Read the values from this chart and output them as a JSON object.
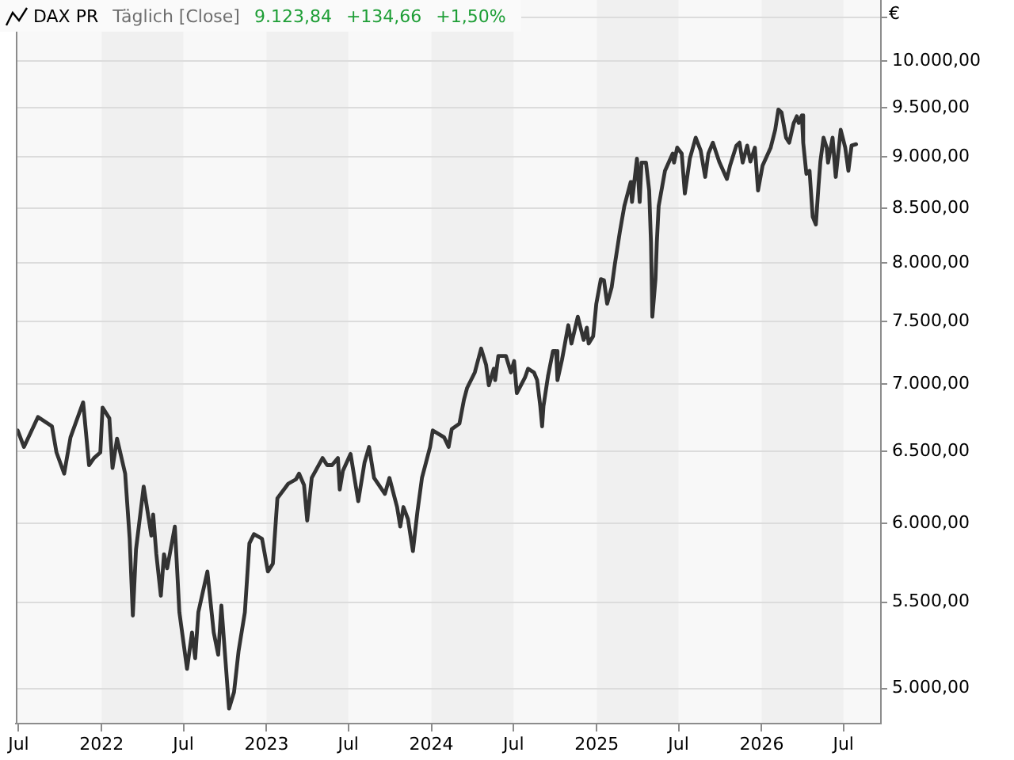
{
  "chart_data": {
    "type": "line",
    "title": "DAX PR",
    "subtitle": "Täglich [Close]",
    "ylabel": "€",
    "annotations": [
      "9.123,84",
      "+134,66",
      "+1,50%"
    ],
    "x": [
      "2021-06-29",
      "2021-07-13",
      "2021-08-13",
      "2021-09-13",
      "2021-09-23",
      "2021-10-10",
      "2021-10-24",
      "2021-11-21",
      "2021-12-04",
      "2021-12-15",
      "2021-12-29",
      "2022-01-03",
      "2022-01-18",
      "2022-01-25",
      "2022-02-04",
      "2022-02-22",
      "2022-03-04",
      "2022-03-11",
      "2022-03-18",
      "2022-04-04",
      "2022-04-21",
      "2022-04-25",
      "2022-05-02",
      "2022-05-12",
      "2022-05-19",
      "2022-05-26",
      "2022-06-12",
      "2022-06-22",
      "2022-07-09",
      "2022-07-20",
      "2022-07-27",
      "2022-08-03",
      "2022-08-23",
      "2022-09-06",
      "2022-09-16",
      "2022-09-23",
      "2022-10-10",
      "2022-10-21",
      "2022-10-31",
      "2022-11-14",
      "2022-11-24",
      "2022-12-04",
      "2022-12-22",
      "2023-01-04",
      "2023-01-15",
      "2023-01-25",
      "2023-02-18",
      "2023-03-07",
      "2023-03-14",
      "2023-03-25",
      "2023-04-01",
      "2023-04-11",
      "2023-05-05",
      "2023-05-15",
      "2023-05-26",
      "2023-06-08",
      "2023-06-12",
      "2023-06-19",
      "2023-07-06",
      "2023-07-23",
      "2023-08-06",
      "2023-08-16",
      "2023-08-27",
      "2023-09-20",
      "2023-09-30",
      "2023-10-17",
      "2023-10-24",
      "2023-10-31",
      "2023-11-10",
      "2023-11-21",
      "2023-12-01",
      "2023-12-11",
      "2023-12-29",
      "2024-01-04",
      "2024-01-29",
      "2024-02-08",
      "2024-02-15",
      "2024-03-03",
      "2024-03-13",
      "2024-03-20",
      "2024-04-06",
      "2024-04-20",
      "2024-05-01",
      "2024-05-07",
      "2024-05-18",
      "2024-05-21",
      "2024-05-28",
      "2024-06-14",
      "2024-06-25",
      "2024-07-02",
      "2024-07-08",
      "2024-07-26",
      "2024-08-02",
      "2024-08-15",
      "2024-08-22",
      "2024-08-29",
      "2024-09-02",
      "2024-09-05",
      "2024-09-15",
      "2024-09-26",
      "2024-10-03",
      "2024-10-06",
      "2024-10-16",
      "2024-10-30",
      "2024-11-06",
      "2024-11-20",
      "2024-12-03",
      "2024-12-10",
      "2024-12-14",
      "2024-12-24",
      "2024-12-31",
      "2025-01-10",
      "2025-01-17",
      "2025-01-24",
      "2025-02-03",
      "2025-02-10",
      "2025-02-21",
      "2025-03-03",
      "2025-03-17",
      "2025-03-20",
      "2025-03-31",
      "2025-04-06",
      "2025-04-10",
      "2025-04-20",
      "2025-04-27",
      "2025-05-01",
      "2025-05-04",
      "2025-05-11",
      "2025-05-14",
      "2025-05-18",
      "2025-06-01",
      "2025-06-18",
      "2025-06-21",
      "2025-06-28",
      "2025-07-08",
      "2025-07-15",
      "2025-07-26",
      "2025-08-08",
      "2025-08-19",
      "2025-08-29",
      "2025-09-05",
      "2025-09-15",
      "2025-09-29",
      "2025-10-16",
      "2025-10-23",
      "2025-11-06",
      "2025-11-13",
      "2025-11-20",
      "2025-11-30",
      "2025-12-07",
      "2025-12-17",
      "2025-12-24",
      "2026-01-03",
      "2026-01-21",
      "2026-01-31",
      "2026-02-07",
      "2026-02-14",
      "2026-02-24",
      "2026-03-03",
      "2026-03-13",
      "2026-03-20",
      "2026-03-24",
      "2026-03-31",
      "2026-04-03",
      "2026-04-10",
      "2026-04-17",
      "2026-04-24",
      "2026-05-01",
      "2026-05-07",
      "2026-05-11",
      "2026-05-18",
      "2026-05-25",
      "2026-05-28",
      "2026-06-07",
      "2026-06-14",
      "2026-06-25",
      "2026-07-05",
      "2026-07-12",
      "2026-07-19",
      "2026-07-29"
    ],
    "values": [
      6650,
      6530,
      6750,
      6680,
      6490,
      6340,
      6600,
      6860,
      6400,
      6450,
      6490,
      6820,
      6740,
      6380,
      6590,
      6340,
      5900,
      5420,
      5830,
      6250,
      5920,
      6060,
      5800,
      5540,
      5800,
      5710,
      5980,
      5440,
      5110,
      5320,
      5170,
      5440,
      5690,
      5320,
      5190,
      5480,
      4890,
      4980,
      5210,
      5440,
      5870,
      5930,
      5900,
      5690,
      5740,
      6170,
      6270,
      6300,
      6340,
      6260,
      6020,
      6310,
      6450,
      6400,
      6400,
      6450,
      6230,
      6360,
      6480,
      6150,
      6420,
      6530,
      6310,
      6200,
      6310,
      6110,
      5980,
      6110,
      6030,
      5820,
      6080,
      6310,
      6530,
      6650,
      6600,
      6530,
      6660,
      6700,
      6880,
      6970,
      7090,
      7280,
      7150,
      6990,
      7120,
      7030,
      7220,
      7220,
      7090,
      7180,
      6930,
      7050,
      7120,
      7090,
      7030,
      6830,
      6680,
      6830,
      7060,
      7260,
      7260,
      7030,
      7190,
      7470,
      7320,
      7540,
      7350,
      7450,
      7320,
      7380,
      7650,
      7860,
      7850,
      7650,
      7790,
      7990,
      8280,
      8520,
      8750,
      8560,
      8980,
      8560,
      8940,
      8940,
      8670,
      8190,
      7540,
      7860,
      8190,
      8520,
      8860,
      9030,
      8940,
      9090,
      9030,
      8640,
      8980,
      9190,
      9060,
      8800,
      9030,
      9140,
      8950,
      8780,
      8910,
      9110,
      9140,
      8940,
      9110,
      8950,
      9090,
      8670,
      8910,
      9090,
      9270,
      9480,
      9450,
      9190,
      9140,
      9340,
      9410,
      9340,
      9420,
      9140,
      8830,
      8860,
      8420,
      8350,
      8720,
      8950,
      9190,
      9090,
      8940,
      9190,
      8800,
      9270,
      9090,
      8860,
      9110,
      9123.84
    ],
    "color": "#333333",
    "xlim": [
      "2021-06-25",
      "2026-09-22"
    ],
    "ylim": [
      4810,
      10700
    ],
    "xticks": [
      {
        "value": "2021-07-01",
        "label": "Jul"
      },
      {
        "value": "2022-01-01",
        "label": "2022"
      },
      {
        "value": "2022-07-01",
        "label": "Jul"
      },
      {
        "value": "2023-01-01",
        "label": "2023"
      },
      {
        "value": "2023-07-01",
        "label": "Jul"
      },
      {
        "value": "2024-01-01",
        "label": "2024"
      },
      {
        "value": "2024-07-01",
        "label": "Jul"
      },
      {
        "value": "2025-01-01",
        "label": "2025"
      },
      {
        "value": "2025-07-01",
        "label": "Jul"
      },
      {
        "value": "2026-01-01",
        "label": "2026"
      },
      {
        "value": "2026-07-01",
        "label": "Jul"
      }
    ],
    "yticks": [
      {
        "value": 5000,
        "label": "5.000,00"
      },
      {
        "value": 5500,
        "label": "5.500,00"
      },
      {
        "value": 6000,
        "label": "6.000,00"
      },
      {
        "value": 6500,
        "label": "6.500,00"
      },
      {
        "value": 7000,
        "label": "7.000,00"
      },
      {
        "value": 7500,
        "label": "7.500,00"
      },
      {
        "value": 8000,
        "label": "8.000,00"
      },
      {
        "value": 8500,
        "label": "8.500,00"
      },
      {
        "value": 9000,
        "label": "9.000,00"
      },
      {
        "value": 9500,
        "label": "9.500,00"
      },
      {
        "value": 10000,
        "label": "10.000,00"
      },
      {
        "value": 10500,
        "label": null
      }
    ],
    "log": "y",
    "grid": "y",
    "bands": [
      {
        "axis": "x",
        "from": "2022-01-01",
        "to": "2022-07-01",
        "color": "#f0f0f0"
      },
      {
        "axis": "x",
        "from": "2023-01-01",
        "to": "2023-07-01",
        "color": "#f0f0f0"
      },
      {
        "axis": "x",
        "from": "2024-01-01",
        "to": "2024-07-01",
        "color": "#f0f0f0"
      },
      {
        "axis": "x",
        "from": "2025-01-01",
        "to": "2025-07-01",
        "color": "#f0f0f0"
      },
      {
        "axis": "x",
        "from": "2026-01-01",
        "to": "2026-07-01",
        "color": "#f0f0f0"
      }
    ]
  }
}
